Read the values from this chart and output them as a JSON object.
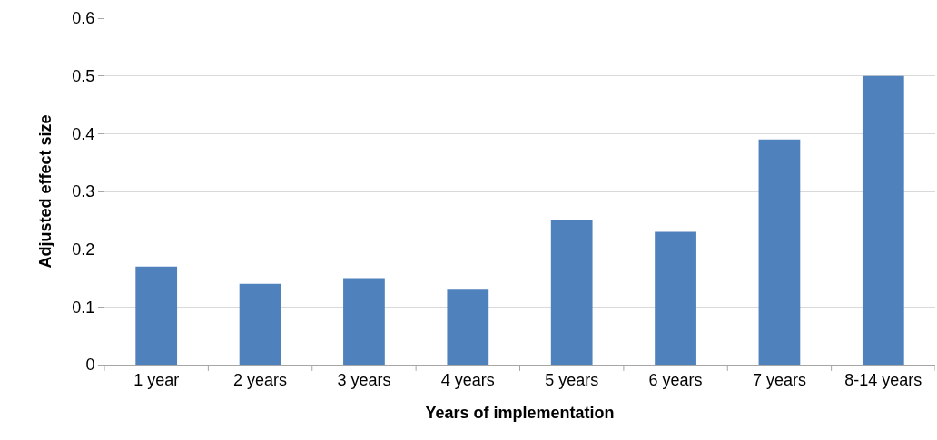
{
  "chart_data": {
    "type": "bar",
    "xlabel": "Years of implementation",
    "ylabel": "Adjusted effect size",
    "categories": [
      "1 year",
      "2 years",
      "3 years",
      "4 years",
      "5 years",
      "6 years",
      "7 years",
      "8-14 years"
    ],
    "values": [
      0.17,
      0.14,
      0.15,
      0.13,
      0.25,
      0.23,
      0.39,
      0.5
    ],
    "color": "#4f81bd",
    "ylim": [
      0,
      0.6
    ],
    "yticks": [
      0,
      0.1,
      0.2,
      0.3,
      0.4,
      0.5,
      0.6
    ],
    "grid": "y"
  }
}
